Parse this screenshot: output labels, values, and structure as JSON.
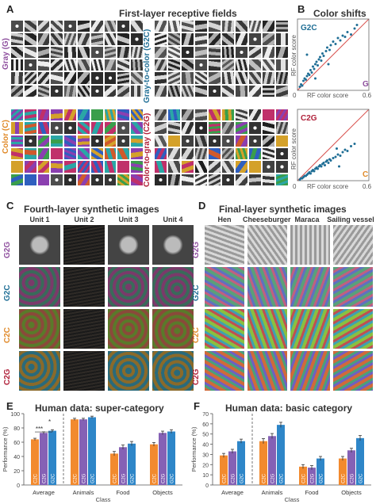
{
  "colors": {
    "gray": "#8e4f9e",
    "g2c": "#1f6e95",
    "color": "#e08a2a",
    "c2g": "#b0213a",
    "bar_c2c": "#f28a2e",
    "bar_c2g": "#8561b5",
    "bar_g2c": "#2e86c8",
    "diag": "#d9534f",
    "point": "#1f6e95"
  },
  "panelA": {
    "letter": "A",
    "title": "First-layer receptive fields",
    "rows": [
      {
        "left": "Gray (G)",
        "right": "Gray-to-color (G2C)"
      },
      {
        "left": "Color (C)",
        "right": "Color-to-gray (C2G)"
      }
    ]
  },
  "panelB": {
    "letter": "B",
    "title": "Color shifts",
    "plots": [
      {
        "tag": "G2C",
        "corner": "G",
        "xlabel": "RF color score",
        "ylabel": "RF color score",
        "xmax_label": "0.6",
        "zero_label": "0"
      },
      {
        "tag": "C2G",
        "corner": "C",
        "xlabel": "RF color score",
        "ylabel": "RF color score",
        "xmax_label": "0.6",
        "zero_label": "0"
      }
    ]
  },
  "panelC": {
    "letter": "C",
    "title": "Fourth-layer synthetic images",
    "columns": [
      "Unit 1",
      "Unit 2",
      "Unit 3",
      "Unit 4"
    ],
    "rows": [
      "G2G",
      "G2C",
      "C2C",
      "C2G"
    ]
  },
  "panelD": {
    "letter": "D",
    "title": "Final-layer synthetic images",
    "columns": [
      "Hen",
      "Cheeseburger",
      "Maraca",
      "Sailing vessel"
    ],
    "rows": [
      "G2G",
      "G2C",
      "C2C",
      "C2G"
    ]
  },
  "panelE": {
    "letter": "E",
    "title": "Human data: super-category",
    "sig1": "***",
    "sig2": "*"
  },
  "panelF": {
    "letter": "F",
    "title": "Human data: basic category"
  },
  "chart_data": [
    {
      "type": "scatter",
      "title": "Color shifts",
      "subtitle": "G2C",
      "xlabel": "RF color score",
      "ylabel": "RF color score",
      "xlim": [
        0,
        0.6
      ],
      "ylim": [
        0,
        0.6
      ],
      "points": [
        [
          0.02,
          0.03
        ],
        [
          0.03,
          0.05
        ],
        [
          0.04,
          0.04
        ],
        [
          0.05,
          0.08
        ],
        [
          0.06,
          0.1
        ],
        [
          0.07,
          0.09
        ],
        [
          0.08,
          0.12
        ],
        [
          0.09,
          0.14
        ],
        [
          0.1,
          0.13
        ],
        [
          0.11,
          0.17
        ],
        [
          0.12,
          0.15
        ],
        [
          0.13,
          0.2
        ],
        [
          0.14,
          0.18
        ],
        [
          0.15,
          0.22
        ],
        [
          0.16,
          0.24
        ],
        [
          0.17,
          0.21
        ],
        [
          0.18,
          0.26
        ],
        [
          0.19,
          0.28
        ],
        [
          0.2,
          0.25
        ],
        [
          0.21,
          0.31
        ],
        [
          0.22,
          0.29
        ],
        [
          0.24,
          0.33
        ],
        [
          0.25,
          0.36
        ],
        [
          0.27,
          0.34
        ],
        [
          0.28,
          0.38
        ],
        [
          0.3,
          0.41
        ],
        [
          0.32,
          0.39
        ],
        [
          0.34,
          0.44
        ],
        [
          0.36,
          0.42
        ],
        [
          0.38,
          0.46
        ],
        [
          0.4,
          0.45
        ],
        [
          0.42,
          0.49
        ],
        [
          0.45,
          0.47
        ],
        [
          0.48,
          0.52
        ],
        [
          0.5,
          0.55
        ],
        [
          0.08,
          0.3
        ],
        [
          0.15,
          0.1
        ],
        [
          0.26,
          0.22
        ]
      ]
    },
    {
      "type": "scatter",
      "title": "Color shifts",
      "subtitle": "C2G",
      "xlabel": "RF color score",
      "ylabel": "RF color score",
      "xlim": [
        0,
        0.6
      ],
      "ylim": [
        0,
        0.6
      ],
      "points": [
        [
          0.02,
          0.01
        ],
        [
          0.03,
          0.02
        ],
        [
          0.04,
          0.02
        ],
        [
          0.05,
          0.03
        ],
        [
          0.06,
          0.04
        ],
        [
          0.07,
          0.04
        ],
        [
          0.08,
          0.05
        ],
        [
          0.09,
          0.06
        ],
        [
          0.1,
          0.07
        ],
        [
          0.11,
          0.06
        ],
        [
          0.12,
          0.08
        ],
        [
          0.13,
          0.09
        ],
        [
          0.14,
          0.08
        ],
        [
          0.15,
          0.1
        ],
        [
          0.16,
          0.11
        ],
        [
          0.17,
          0.1
        ],
        [
          0.18,
          0.12
        ],
        [
          0.19,
          0.13
        ],
        [
          0.2,
          0.12
        ],
        [
          0.21,
          0.14
        ],
        [
          0.22,
          0.15
        ],
        [
          0.23,
          0.13
        ],
        [
          0.24,
          0.16
        ],
        [
          0.25,
          0.17
        ],
        [
          0.26,
          0.15
        ],
        [
          0.27,
          0.18
        ],
        [
          0.28,
          0.17
        ],
        [
          0.3,
          0.19
        ],
        [
          0.32,
          0.2
        ],
        [
          0.34,
          0.22
        ],
        [
          0.36,
          0.21
        ],
        [
          0.38,
          0.24
        ],
        [
          0.4,
          0.26
        ],
        [
          0.42,
          0.25
        ],
        [
          0.45,
          0.29
        ],
        [
          0.48,
          0.31
        ],
        [
          0.35,
          0.12
        ],
        [
          0.33,
          0.27
        ]
      ]
    },
    {
      "type": "bar",
      "title": "Human data: super-category",
      "xlabel": "Class",
      "ylabel": "Performance (%)",
      "ylim": [
        0,
        100
      ],
      "yticks": [
        0,
        20,
        40,
        60,
        80,
        100
      ],
      "categories": [
        "Average",
        "Animals",
        "Food",
        "Objects"
      ],
      "series": [
        {
          "name": "C2C",
          "values": [
            64,
            92,
            44,
            57
          ],
          "errors": [
            1.5,
            1.5,
            3,
            2.5
          ]
        },
        {
          "name": "C2G",
          "values": [
            73,
            92,
            53,
            73
          ],
          "errors": [
            1.5,
            1.5,
            3,
            2.5
          ]
        },
        {
          "name": "G2C",
          "values": [
            76,
            95,
            58,
            75
          ],
          "errors": [
            1.5,
            1.5,
            3,
            2.5
          ]
        }
      ],
      "significance": [
        "***",
        "*"
      ]
    },
    {
      "type": "bar",
      "title": "Human data: basic category",
      "xlabel": "Class",
      "ylabel": "Performance (%)",
      "ylim": [
        0,
        70
      ],
      "yticks": [
        0,
        10,
        20,
        30,
        40,
        50,
        60,
        70
      ],
      "categories": [
        "Average",
        "Animals",
        "Food",
        "Objects"
      ],
      "series": [
        {
          "name": "C2C",
          "values": [
            29,
            43,
            18,
            26
          ],
          "errors": [
            2,
            2.5,
            2,
            2
          ]
        },
        {
          "name": "C2G",
          "values": [
            33,
            48,
            17,
            34
          ],
          "errors": [
            2,
            2.5,
            2,
            2
          ]
        },
        {
          "name": "G2C",
          "values": [
            43,
            59,
            26,
            46
          ],
          "errors": [
            2,
            2.5,
            2,
            2.5
          ]
        }
      ]
    }
  ]
}
